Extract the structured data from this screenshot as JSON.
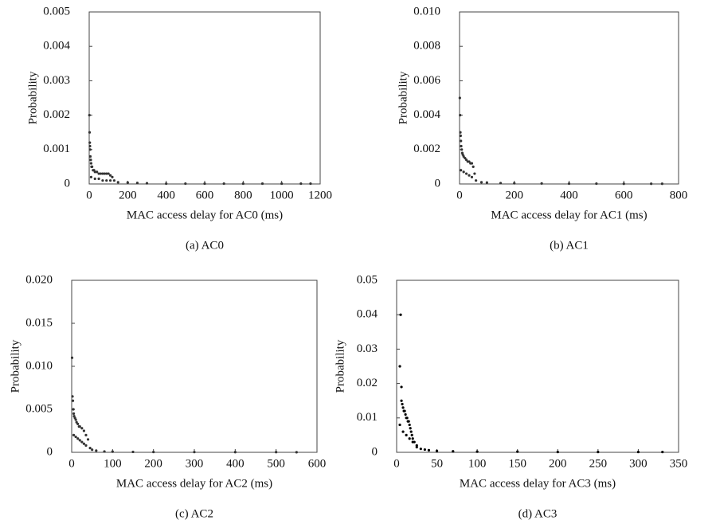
{
  "chart_data": [
    {
      "type": "scatter",
      "x_label": "MAC access delay for AC0 (ms)",
      "y_label": "Probability",
      "caption": "(a) AC0",
      "color": "#333333",
      "xlim": [
        0,
        1200
      ],
      "xticks": [
        0,
        200,
        400,
        600,
        800,
        1000,
        1200
      ],
      "ylim": [
        0,
        0.005
      ],
      "yticks": [
        0,
        0.001,
        0.002,
        0.003,
        0.004,
        0.005
      ],
      "x": [
        1,
        2,
        3,
        4,
        5,
        6,
        8,
        10,
        12,
        15,
        20,
        25,
        30,
        40,
        50,
        60,
        70,
        80,
        90,
        100,
        110,
        120,
        10,
        30,
        50,
        70,
        90,
        110,
        130,
        150,
        200,
        250,
        300,
        400,
        500,
        600,
        700,
        800,
        900,
        1000,
        1100,
        1150
      ],
      "y": [
        0.002,
        0.0015,
        0.0012,
        0.0011,
        0.001,
        0.0008,
        0.0007,
        0.0006,
        0.0005,
        0.0005,
        0.0004,
        0.0004,
        0.00035,
        0.00035,
        0.0003,
        0.0003,
        0.0003,
        0.0003,
        0.0003,
        0.0003,
        0.00025,
        0.0002,
        0.0002,
        0.00015,
        0.00015,
        0.0001,
        0.0001,
        0.0001,
        0.0001,
        5e-05,
        4e-05,
        3e-05,
        2e-05,
        1e-05,
        1e-05,
        1e-05,
        1e-05,
        1e-05,
        1e-05,
        1e-05,
        1e-05,
        1e-05
      ]
    },
    {
      "type": "scatter",
      "x_label": "MAC access delay for AC1 (ms)",
      "y_label": "Probability",
      "caption": "(b) AC1",
      "color": "#333333",
      "xlim": [
        0,
        800
      ],
      "xticks": [
        0,
        200,
        400,
        600,
        800
      ],
      "ylim": [
        0,
        0.01
      ],
      "yticks": [
        0,
        0.002,
        0.004,
        0.006,
        {
          "value": 0.01,
          "label": "0.010"
        },
        0.008
      ],
      "x": [
        1,
        2,
        3,
        4,
        5,
        6,
        8,
        10,
        12,
        15,
        20,
        25,
        30,
        35,
        40,
        45,
        50,
        55,
        5,
        15,
        25,
        35,
        45,
        60,
        80,
        100,
        150,
        200,
        300,
        400,
        500,
        600,
        700,
        740
      ],
      "y": [
        0.005,
        0.004,
        0.003,
        0.0028,
        0.0025,
        0.0022,
        0.002,
        0.0018,
        0.0017,
        0.0016,
        0.0015,
        0.0014,
        0.0013,
        0.0013,
        0.0012,
        0.0012,
        0.001,
        0.0006,
        0.0008,
        0.0007,
        0.0006,
        0.0005,
        0.0004,
        0.0002,
        0.0001,
        8e-05,
        5e-05,
        4e-05,
        3e-05,
        2e-05,
        2e-05,
        1e-05,
        1e-05,
        1e-05
      ]
    },
    {
      "type": "scatter",
      "x_label": "MAC access delay for AC2 (ms)",
      "y_label": "Probability",
      "caption": "(c) AC2",
      "color": "#333333",
      "xlim": [
        0,
        600
      ],
      "xticks": [
        0,
        100,
        200,
        300,
        400,
        500,
        600
      ],
      "ylim": [
        0,
        0.02
      ],
      "yticks": [
        0,
        0.005,
        {
          "value": 0.01,
          "label": "0.010"
        },
        0.015,
        {
          "value": 0.02,
          "label": "0.020"
        }
      ],
      "x": [
        1,
        2,
        3,
        4,
        5,
        6,
        8,
        10,
        12,
        15,
        18,
        20,
        25,
        30,
        35,
        40,
        5,
        10,
        15,
        20,
        25,
        30,
        35,
        45,
        50,
        60,
        80,
        100,
        150,
        200,
        300,
        400,
        500,
        550
      ],
      "y": [
        0.011,
        0.0065,
        0.006,
        0.005,
        0.0045,
        0.0042,
        0.004,
        0.0038,
        0.0035,
        0.0033,
        0.003,
        0.003,
        0.0028,
        0.0025,
        0.002,
        0.0015,
        0.002,
        0.0018,
        0.0016,
        0.0014,
        0.0012,
        0.001,
        0.0008,
        0.0005,
        0.0003,
        0.0002,
        0.0001,
        8e-05,
        5e-05,
        4e-05,
        3e-05,
        2e-05,
        2e-05,
        1e-05
      ]
    },
    {
      "type": "scatter",
      "x_label": "MAC access delay for AC3 (ms)",
      "y_label": "Probability",
      "caption": "(d) AC3",
      "color": "#000000",
      "xlim": [
        0,
        350
      ],
      "xticks": [
        0,
        50,
        100,
        150,
        200,
        250,
        300,
        350
      ],
      "ylim": [
        0,
        0.05
      ],
      "yticks": [
        0,
        0.01,
        0.02,
        0.03,
        0.04,
        0.05
      ],
      "x": [
        4,
        5,
        6,
        6,
        7,
        8,
        9,
        10,
        11,
        12,
        13,
        14,
        15,
        16,
        17,
        18,
        19,
        20,
        22,
        25,
        4,
        8,
        12,
        16,
        20,
        25,
        30,
        35,
        40,
        50,
        70,
        100,
        150,
        200,
        250,
        300,
        330
      ],
      "y": [
        0.025,
        0.04,
        0.019,
        0.015,
        0.014,
        0.013,
        0.012,
        0.012,
        0.011,
        0.01,
        0.01,
        0.009,
        0.009,
        0.008,
        0.007,
        0.006,
        0.005,
        0.004,
        0.003,
        0.002,
        0.008,
        0.006,
        0.005,
        0.004,
        0.003,
        0.0015,
        0.001,
        0.0008,
        0.0006,
        0.0004,
        0.0003,
        0.0002,
        0.0002,
        0.0001,
        0.0001,
        0.0001,
        0.0001
      ]
    }
  ]
}
